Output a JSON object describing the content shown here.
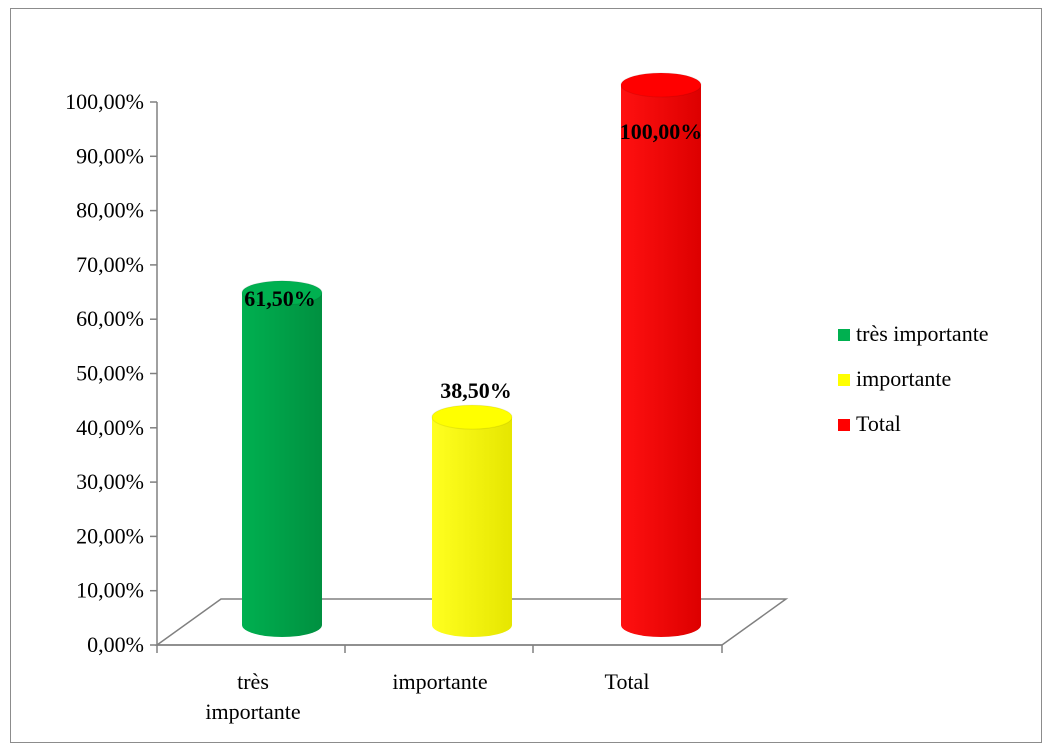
{
  "chart_data": {
    "type": "bar",
    "style": "3d-cylinder",
    "categories": [
      "très importante",
      "importante",
      "Total"
    ],
    "category_lines": [
      [
        "très",
        "importante"
      ],
      [
        "importante"
      ],
      [
        "Total"
      ]
    ],
    "values": [
      61.5,
      38.5,
      100.0
    ],
    "data_labels": [
      "61,50%",
      "38,50%",
      "100,00%"
    ],
    "colors": [
      "#00b050",
      "#ffff00",
      "#ff0000"
    ],
    "ylim": [
      0,
      100
    ],
    "y_ticks": [
      0,
      10,
      20,
      30,
      40,
      50,
      60,
      70,
      80,
      90,
      100
    ],
    "y_tick_labels": [
      "0,00%",
      "10,00%",
      "20,00%",
      "30,00%",
      "40,00%",
      "50,00%",
      "60,00%",
      "70,00%",
      "80,00%",
      "90,00%",
      "100,00%"
    ],
    "legend": {
      "position": "right",
      "entries": [
        "très importante",
        "importante",
        "Total"
      ]
    },
    "grid": false
  }
}
